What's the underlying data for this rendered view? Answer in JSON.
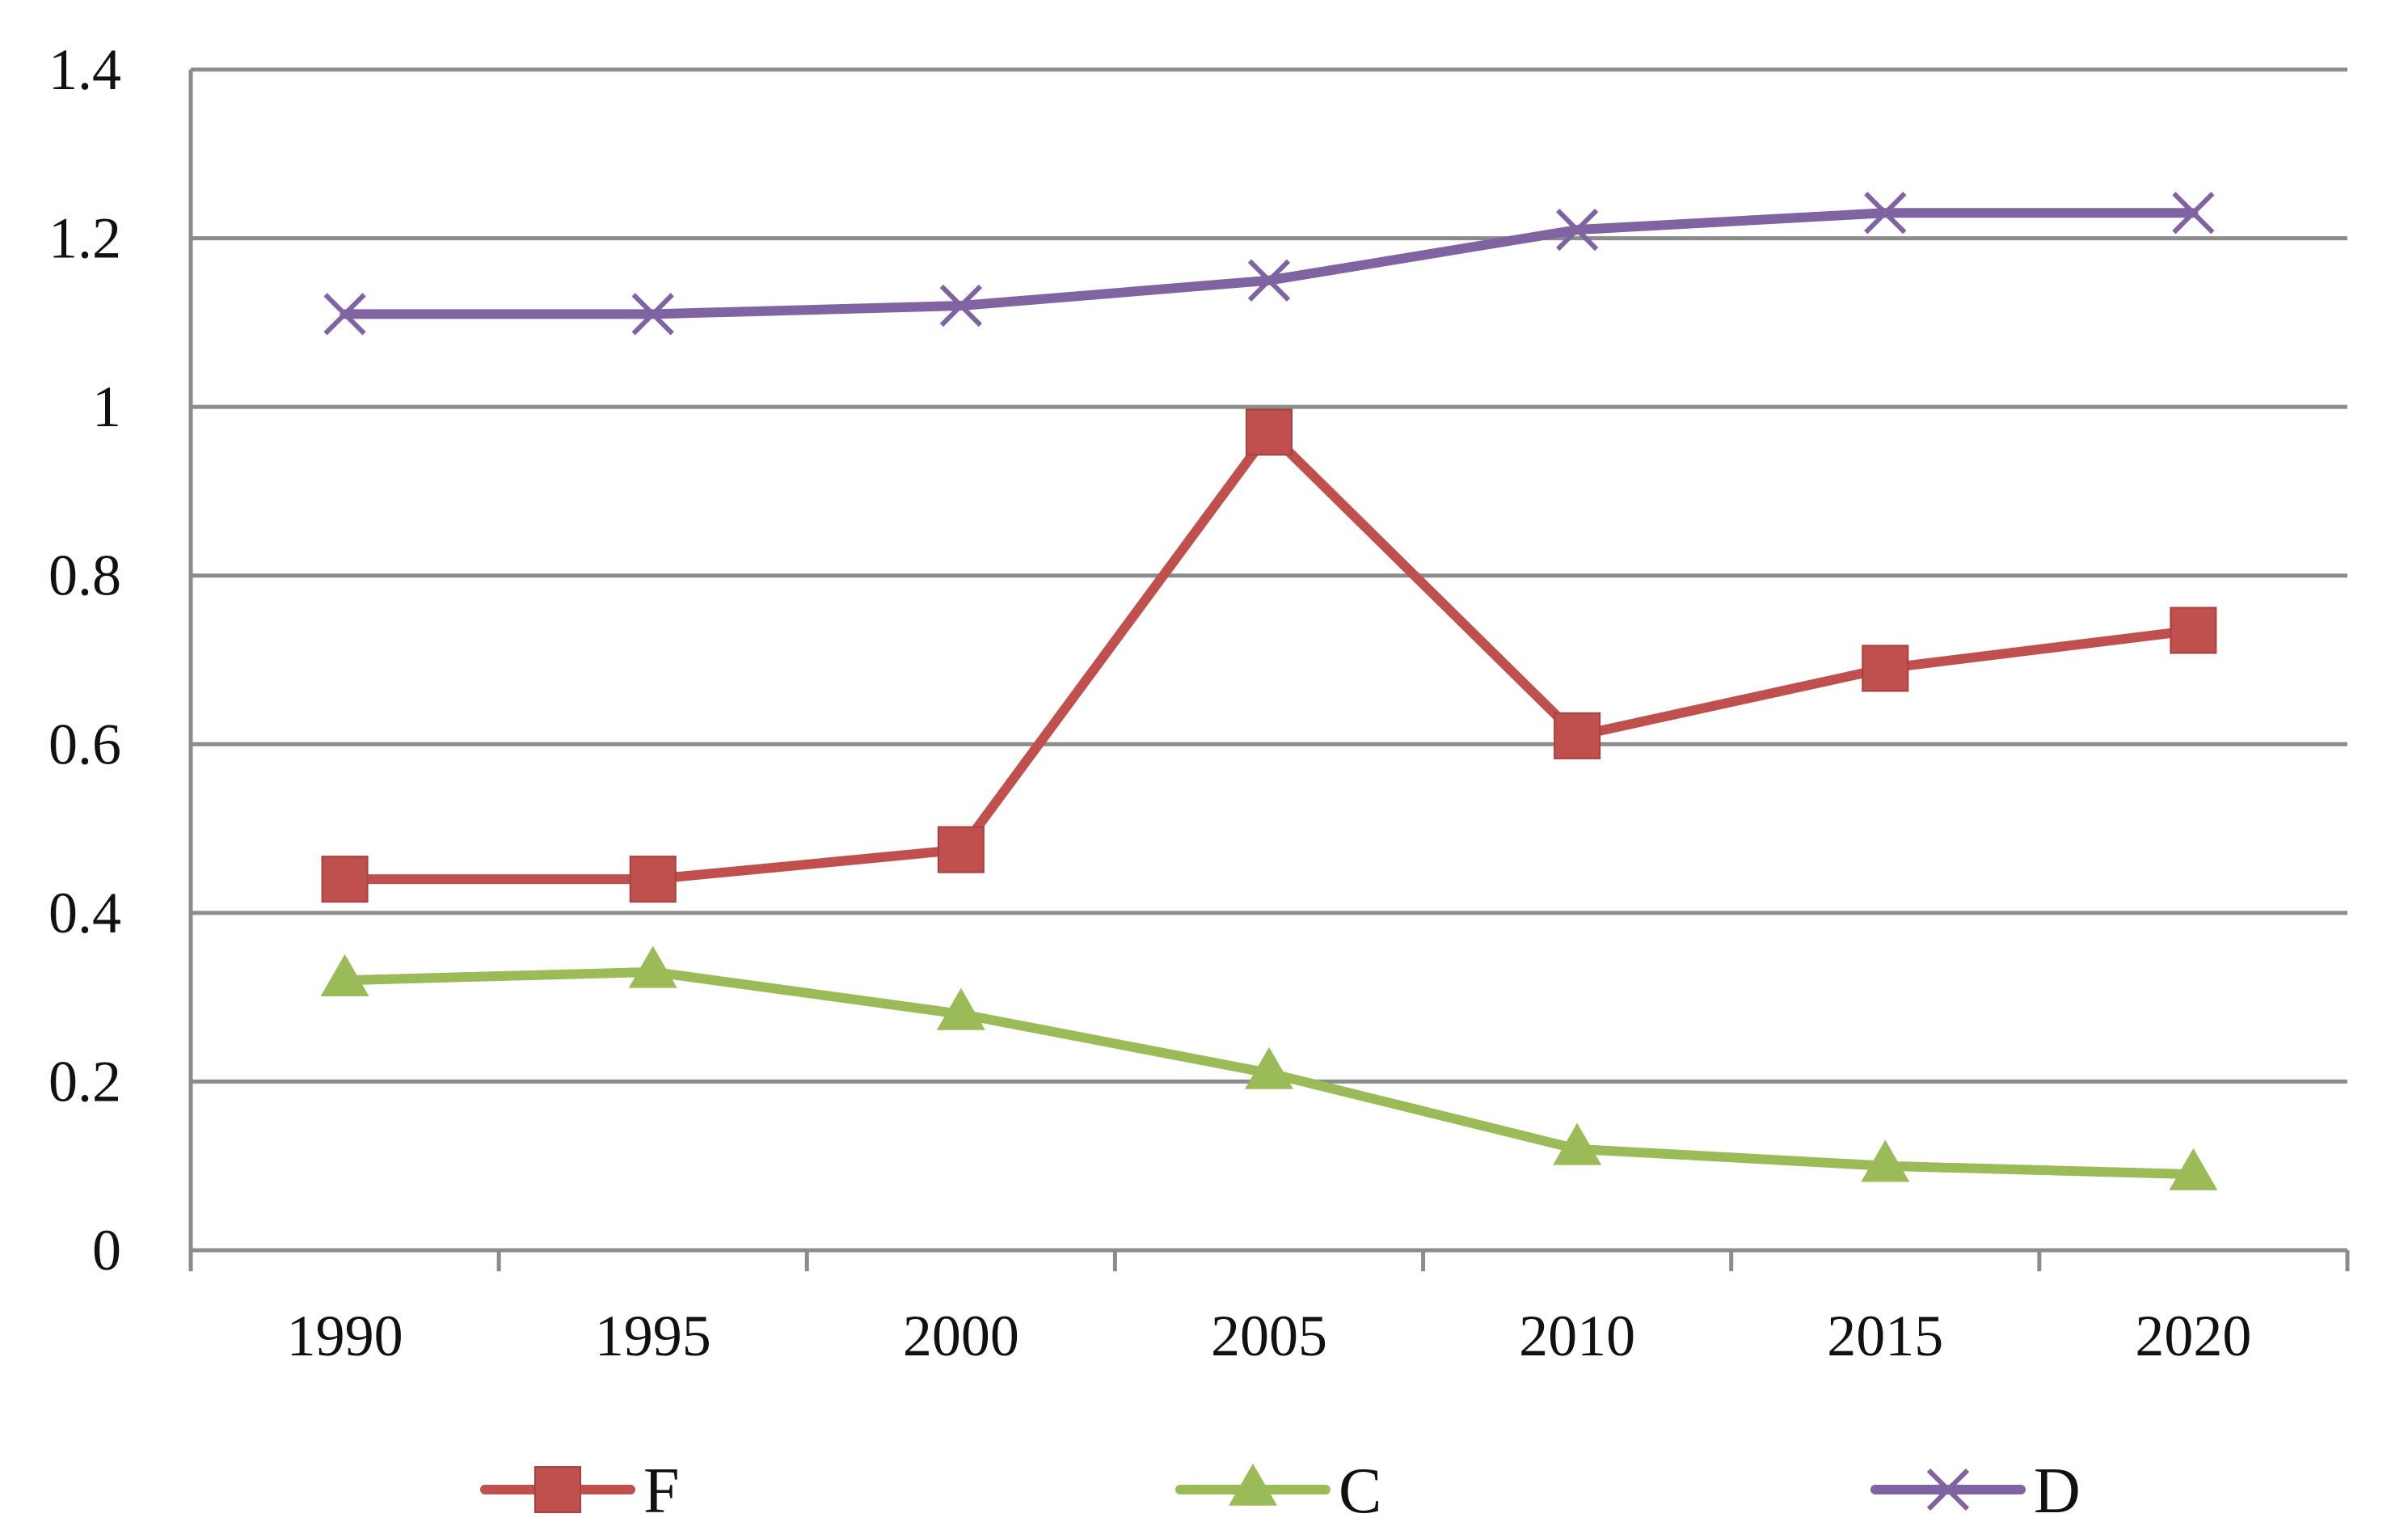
{
  "chart_data": {
    "type": "line",
    "title": "",
    "xlabel": "",
    "ylabel": "",
    "categories": [
      "1990",
      "1995",
      "2000",
      "2005",
      "2010",
      "2015",
      "2020"
    ],
    "ylim": [
      0,
      1.4
    ],
    "y_ticks": [
      "0",
      "0.2",
      "0.4",
      "0.6",
      "0.8",
      "1",
      "1.2",
      "1.4"
    ],
    "y_tick_values": [
      0,
      0.2,
      0.4,
      0.6,
      0.8,
      1.0,
      1.2,
      1.4
    ],
    "grid": true,
    "legend_position": "bottom",
    "series": [
      {
        "name": "F",
        "color": "#c0504d",
        "marker": "square",
        "values": [
          0.44,
          0.44,
          0.475,
          0.97,
          0.61,
          0.69,
          0.735
        ]
      },
      {
        "name": "C",
        "color": "#9bbb59",
        "marker": "triangle",
        "values": [
          0.32,
          0.33,
          0.28,
          0.21,
          0.12,
          0.1,
          0.09
        ]
      },
      {
        "name": "D",
        "color": "#8064a2",
        "marker": "x",
        "values": [
          1.11,
          1.11,
          1.12,
          1.15,
          1.21,
          1.23,
          1.23
        ]
      }
    ]
  }
}
